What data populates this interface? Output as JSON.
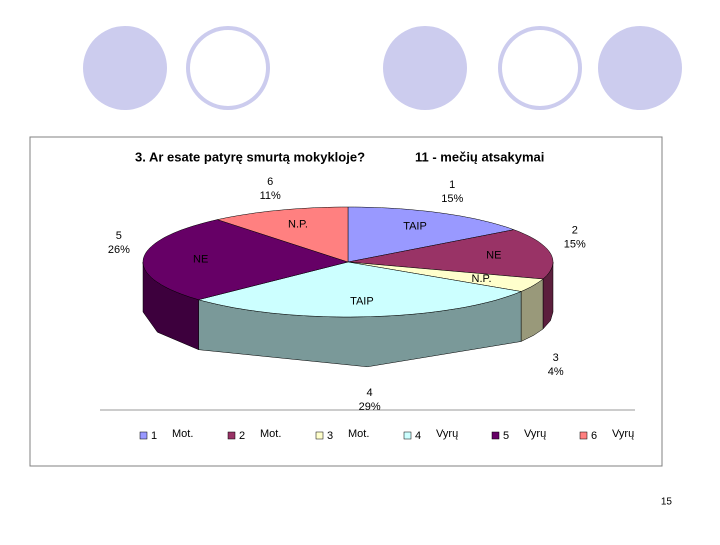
{
  "chart_data": {
    "type": "pie3d",
    "title": "3. Ar esate patyrę smurtą mokykloje?",
    "subtitle": "11 - mečių atsakymai",
    "categories": [
      "1",
      "2",
      "3",
      "4",
      "5",
      "6"
    ],
    "values": [
      15,
      15,
      4,
      29,
      26,
      11
    ],
    "value_labels": [
      "15%",
      "15%",
      "4%",
      "29%",
      "26%",
      "11%"
    ],
    "slice_labels": [
      "TAIP",
      "NE",
      "N.P.",
      "TAIP",
      "NE",
      "N.P."
    ],
    "legend_labels": [
      "Mot.",
      "Mot.",
      "Mot.",
      "Vyrų",
      "Vyrų",
      "Vyrų"
    ],
    "colors": [
      "#9999ff",
      "#993366",
      "#ffffcc",
      "#ccffff",
      "#660066",
      "#ff8080"
    ]
  },
  "page_number": "15"
}
